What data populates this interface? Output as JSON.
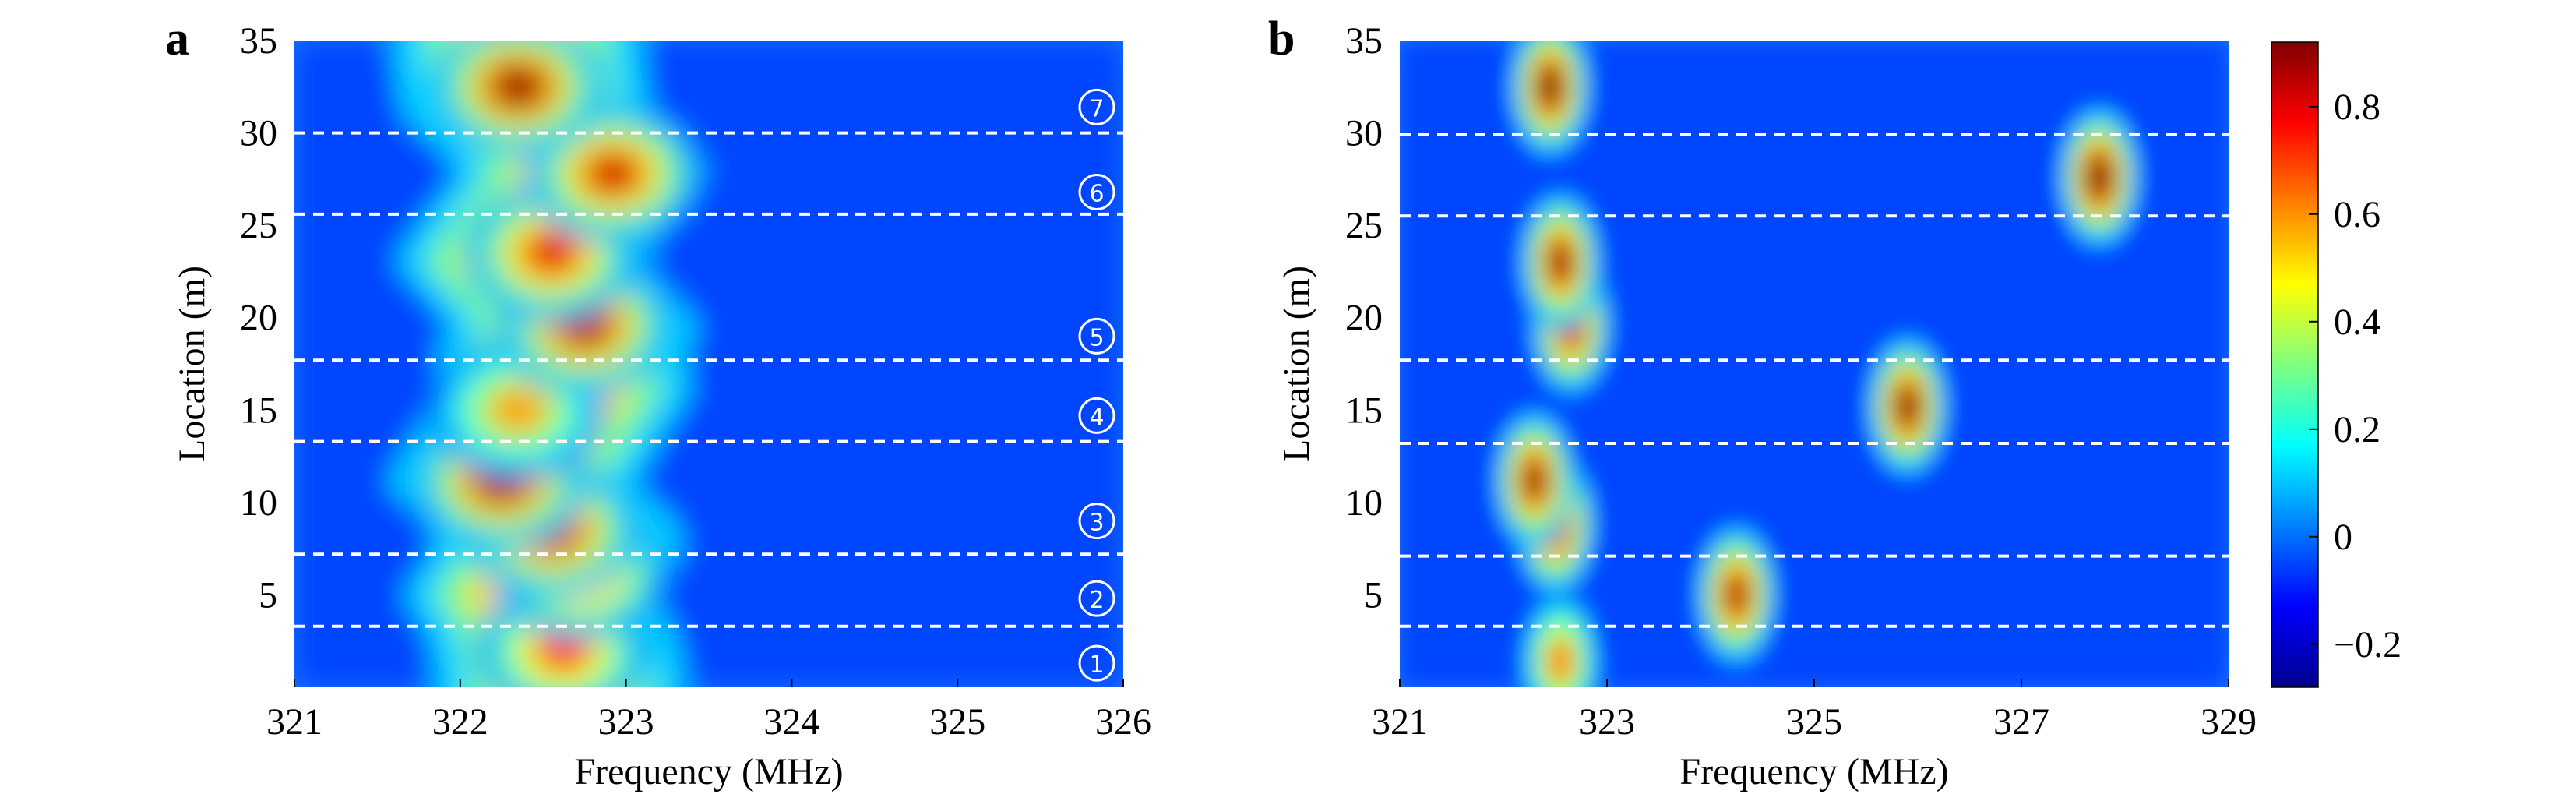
{
  "figure": {
    "colorbar": {
      "ticks": [
        "−0.2",
        "0",
        "0.2",
        "0.4",
        "0.6",
        "0.8"
      ],
      "tick_values": [
        -0.2,
        0,
        0.2,
        0.4,
        0.6,
        0.8
      ],
      "range": [
        -0.28,
        0.92
      ],
      "colormap": "jet"
    }
  },
  "chart_data": [
    {
      "panel": "a",
      "type": "heatmap",
      "xlabel": "Frequency (MHz)",
      "ylabel": "Location (m)",
      "xlim": [
        321,
        326
      ],
      "ylim": [
        0,
        35
      ],
      "xticks": [
        "321",
        "322",
        "323",
        "324",
        "325",
        "326"
      ],
      "xtick_values": [
        321,
        322,
        323,
        324,
        325,
        326
      ],
      "yticks": [
        "5",
        "10",
        "15",
        "20",
        "25",
        "30",
        "35"
      ],
      "ytick_values": [
        5,
        10,
        15,
        20,
        25,
        30,
        35
      ],
      "boundaries": [
        3.3,
        7.2,
        13.3,
        17.7,
        25.6,
        30.0
      ],
      "region_labels": [
        "①",
        "②",
        "③",
        "④",
        "⑤",
        "⑥",
        "⑦"
      ],
      "region_label_y": [
        1.3,
        4.8,
        9.0,
        14.7,
        19.0,
        26.8,
        31.4
      ],
      "ridge_center_mhz": [
        322.6,
        322.55,
        322.4,
        322.6,
        322.55,
        322.3,
        322.5,
        322.65,
        322.6,
        322.7,
        322.55,
        322.35,
        322.5,
        322.75,
        322.4,
        322.35
      ],
      "ridge_y_m": [
        1,
        3,
        5,
        7.5,
        9,
        11,
        14,
        16,
        18,
        19.5,
        21,
        23,
        25,
        28,
        31,
        34
      ],
      "hotspots": [
        {
          "freq": 322.62,
          "loc": 2.0,
          "value": 0.72
        },
        {
          "freq": 322.72,
          "loc": 6.3,
          "value": 0.78
        },
        {
          "freq": 322.55,
          "loc": 8.5,
          "value": 0.86
        },
        {
          "freq": 322.25,
          "loc": 11.2,
          "value": 0.88
        },
        {
          "freq": 322.35,
          "loc": 15.0,
          "value": 0.58
        },
        {
          "freq": 322.75,
          "loc": 19.6,
          "value": 0.86
        },
        {
          "freq": 322.55,
          "loc": 23.5,
          "value": 0.8
        },
        {
          "freq": 322.92,
          "loc": 27.8,
          "value": 0.82
        },
        {
          "freq": 322.35,
          "loc": 32.5,
          "value": 0.88
        }
      ]
    },
    {
      "panel": "b",
      "type": "heatmap",
      "xlabel": "Frequency (MHz)",
      "ylabel": "Location (m)",
      "xlim": [
        321,
        329
      ],
      "ylim": [
        0,
        35
      ],
      "xticks": [
        "321",
        "323",
        "325",
        "327",
        "329"
      ],
      "xtick_values": [
        321,
        323,
        325,
        327,
        329
      ],
      "yticks": [
        "5",
        "10",
        "15",
        "20",
        "25",
        "30",
        "35"
      ],
      "ytick_values": [
        5,
        10,
        15,
        20,
        25,
        30,
        35
      ],
      "boundaries": [
        3.3,
        7.1,
        13.2,
        17.7,
        25.5,
        29.9
      ],
      "hotspots": [
        {
          "freq": 322.55,
          "loc": 1.4,
          "value": 0.62
        },
        {
          "freq": 324.25,
          "loc": 5.0,
          "value": 0.86
        },
        {
          "freq": 322.5,
          "loc": 8.8,
          "value": 0.88
        },
        {
          "freq": 322.3,
          "loc": 11.2,
          "value": 0.88
        },
        {
          "freq": 325.9,
          "loc": 15.2,
          "value": 0.9
        },
        {
          "freq": 322.65,
          "loc": 19.6,
          "value": 0.86
        },
        {
          "freq": 322.55,
          "loc": 23.0,
          "value": 0.88
        },
        {
          "freq": 327.75,
          "loc": 27.6,
          "value": 0.95
        },
        {
          "freq": 322.45,
          "loc": 32.5,
          "value": 0.92
        }
      ]
    }
  ]
}
